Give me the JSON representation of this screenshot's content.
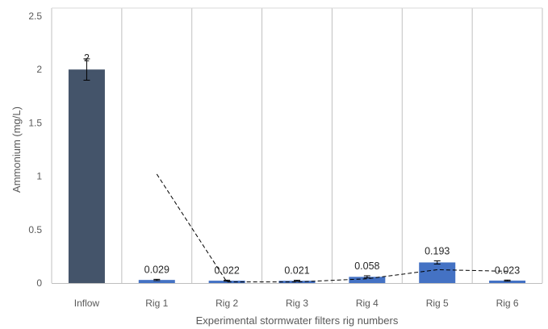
{
  "chart_data": {
    "type": "bar",
    "title": "",
    "xlabel": "Experimental stormwater filters rig numbers",
    "ylabel": "Ammonium (mg/L)",
    "ylim": [
      0,
      2.5
    ],
    "yticks": [
      "0",
      "0.5",
      "1",
      "1.5",
      "2",
      "2.5"
    ],
    "categories": [
      "Inflow",
      "Rig 1",
      "Rig 2",
      "Rig 3",
      "Rig 4",
      "Rig 5",
      "Rig 6"
    ],
    "values": [
      2,
      0.029,
      0.022,
      0.021,
      0.058,
      0.193,
      0.023
    ],
    "data_labels": [
      "2",
      "0.029",
      "0.022",
      "0.021",
      "0.058",
      "0.193",
      "0.023"
    ],
    "error": [
      0.1,
      0.006,
      0.005,
      0.005,
      0.01,
      0.015,
      0.005
    ],
    "trendline": {
      "style": "dashed",
      "x": [
        "Rig 1",
        "Rig 2",
        "Rig 3",
        "Rig 4",
        "Rig 5",
        "Rig 6"
      ],
      "y": [
        1.02,
        0.01,
        0.01,
        0.04,
        0.125,
        0.11
      ]
    },
    "grid": "vertical-category-separators",
    "legend": "none",
    "colors": {
      "inflow_bar": "#44546a",
      "rig_bar": "#4472c4",
      "separator": "#c0c0c0",
      "trendline": "#000000"
    }
  }
}
